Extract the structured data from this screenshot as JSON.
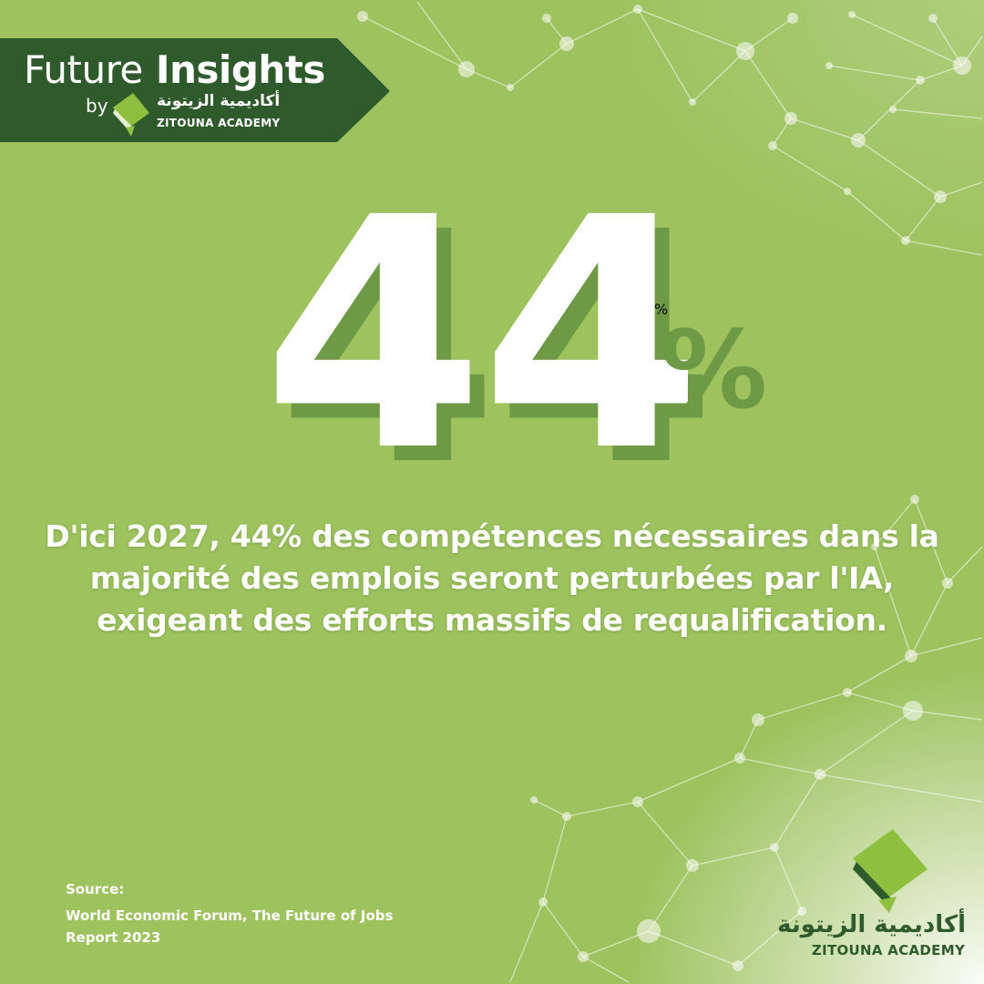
{
  "brand": {
    "series_title_light": "Future",
    "series_title_bold": "Insights",
    "by_label": "by",
    "academy_arabic": "أكاديمية الزيتونة",
    "academy_latin": "ZITOUNA ACADEMY",
    "banner_color": "#2e5a2c",
    "logo_icon": "leaf-book-logo-icon"
  },
  "stat": {
    "number": "44",
    "unit": "%"
  },
  "statement": {
    "text": "D'ici 2027, 44% des compétences nécessaires dans la majorité des emplois seront perturbées par l'IA, exigeant des efforts massifs de requalification."
  },
  "source": {
    "label": "Source:",
    "text": "World Economic Forum, The Future of Jobs Report 2023"
  },
  "corner_logo": {
    "arabic": "أكاديمية الزيتونة",
    "latin": "ZITOUNA ACADEMY",
    "icon": "leaf-book-logo-icon"
  },
  "colors": {
    "background": "#9dc25e",
    "shadow": "#6e9a45",
    "logo_light": "#8fbf3f",
    "logo_dark": "#2e5a2c",
    "text": "#ffffff"
  }
}
